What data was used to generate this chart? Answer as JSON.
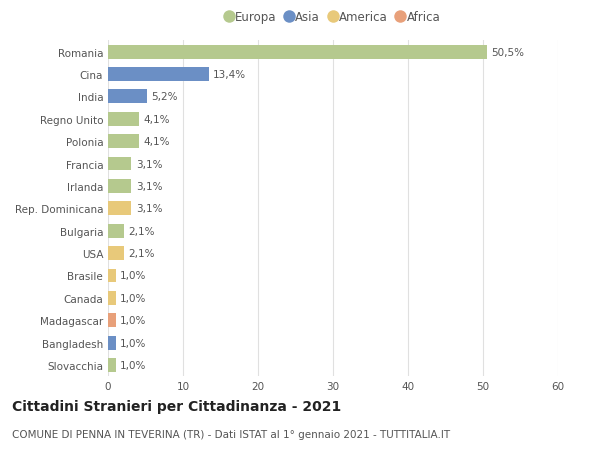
{
  "categories": [
    "Romania",
    "Cina",
    "India",
    "Regno Unito",
    "Polonia",
    "Francia",
    "Irlanda",
    "Rep. Dominicana",
    "Bulgaria",
    "USA",
    "Brasile",
    "Canada",
    "Madagascar",
    "Bangladesh",
    "Slovacchia"
  ],
  "values": [
    50.5,
    13.4,
    5.2,
    4.1,
    4.1,
    3.1,
    3.1,
    3.1,
    2.1,
    2.1,
    1.0,
    1.0,
    1.0,
    1.0,
    1.0
  ],
  "labels": [
    "50,5%",
    "13,4%",
    "5,2%",
    "4,1%",
    "4,1%",
    "3,1%",
    "3,1%",
    "3,1%",
    "2,1%",
    "2,1%",
    "1,0%",
    "1,0%",
    "1,0%",
    "1,0%",
    "1,0%"
  ],
  "colors": [
    "#b5c98e",
    "#6b8fc5",
    "#6b8fc5",
    "#b5c98e",
    "#b5c98e",
    "#b5c98e",
    "#b5c98e",
    "#e8c97a",
    "#b5c98e",
    "#e8c97a",
    "#e8c97a",
    "#e8c97a",
    "#e8a07a",
    "#6b8fc5",
    "#b5c98e"
  ],
  "legend_labels": [
    "Europa",
    "Asia",
    "America",
    "Africa"
  ],
  "legend_colors": [
    "#b5c98e",
    "#6b8fc5",
    "#e8c97a",
    "#e8a07a"
  ],
  "xlim": [
    0,
    60
  ],
  "xticks": [
    0,
    10,
    20,
    30,
    40,
    50,
    60
  ],
  "title": "Cittadini Stranieri per Cittadinanza - 2021",
  "subtitle": "COMUNE DI PENNA IN TEVERINA (TR) - Dati ISTAT al 1° gennaio 2021 - TUTTITALIA.IT",
  "bg_color": "#ffffff",
  "plot_bg_color": "#ffffff",
  "grid_color": "#e0e0e0",
  "title_fontsize": 10,
  "subtitle_fontsize": 7.5,
  "bar_height": 0.62,
  "label_fontsize": 7.5,
  "tick_fontsize": 7.5,
  "legend_fontsize": 8.5
}
